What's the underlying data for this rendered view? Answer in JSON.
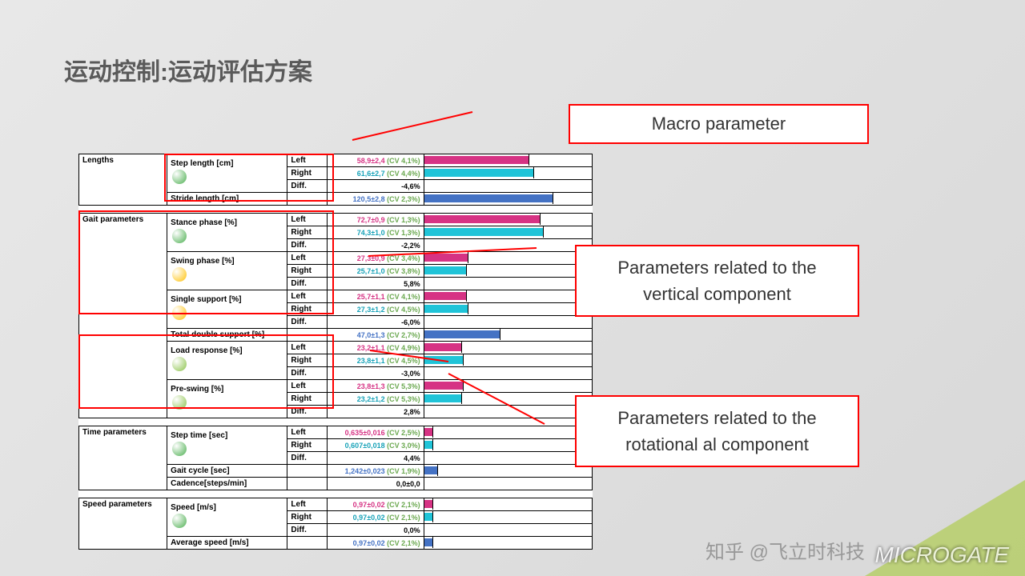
{
  "title": "运动控制:运动评估方案",
  "annotations": {
    "macro": "Macro parameter",
    "vertical": "Parameters related to the vertical component",
    "rotational": "Parameters related to the rotational al component"
  },
  "colors": {
    "pink": "#d63384",
    "cyan": "#20c4d8",
    "blue": "#4472c4",
    "green_cv": "#6aa84f",
    "red": "#ff0000",
    "ball_green": "#4caf50",
    "ball_yellow": "#ffc107",
    "ball_mag": "#8bc34a"
  },
  "sections": [
    {
      "category": "Lengths",
      "rows": [
        {
          "param": "Step length [cm]",
          "ball": "#4caf50",
          "sides": [
            {
              "side": "Left",
              "val": "58,9±2,4",
              "cv": "(CV 4,1%)",
              "color": "pink",
              "bar": 65,
              "barcolor": "#d63384"
            },
            {
              "side": "Right",
              "val": "61,6±2,7",
              "cv": "(CV 4,4%)",
              "color": "cyan",
              "bar": 68,
              "barcolor": "#20c4d8"
            },
            {
              "side": "Diff.",
              "val": "-4,6%",
              "cv": "",
              "color": "black",
              "bar": 0
            }
          ]
        },
        {
          "param": "Stride length [cm]",
          "sides": [
            {
              "side": "",
              "val": "120,5±2,8",
              "cv": "(CV 2,3%)",
              "color": "blue",
              "bar": 80,
              "barcolor": "#4472c4"
            }
          ]
        }
      ]
    },
    {
      "category": "Gait parameters",
      "rows": [
        {
          "param": "Stance phase [%]",
          "ball": "#4caf50",
          "sides": [
            {
              "side": "Left",
              "val": "72,7±0,9",
              "cv": "(CV 1,3%)",
              "color": "pink",
              "bar": 72,
              "barcolor": "#d63384"
            },
            {
              "side": "Right",
              "val": "74,3±1,0",
              "cv": "(CV 1,3%)",
              "color": "cyan",
              "bar": 74,
              "barcolor": "#20c4d8"
            },
            {
              "side": "Diff.",
              "val": "-2,2%",
              "cv": "",
              "color": "black",
              "bar": 0
            }
          ]
        },
        {
          "param": "Swing phase [%]",
          "ball": "#ffc107",
          "sides": [
            {
              "side": "Left",
              "val": "27,3±0,9",
              "cv": "(CV 3,4%)",
              "color": "pink",
              "bar": 27,
              "barcolor": "#d63384"
            },
            {
              "side": "Right",
              "val": "25,7±1,0",
              "cv": "(CV 3,8%)",
              "color": "cyan",
              "bar": 26,
              "barcolor": "#20c4d8"
            },
            {
              "side": "Diff.",
              "val": "5,8%",
              "cv": "",
              "color": "black",
              "bar": 0
            }
          ]
        },
        {
          "param": "Single support [%]",
          "ball": "#ffc107",
          "sides": [
            {
              "side": "Left",
              "val": "25,7±1,1",
              "cv": "(CV 4,1%)",
              "color": "pink",
              "bar": 26,
              "barcolor": "#d63384"
            },
            {
              "side": "Right",
              "val": "27,3±1,2",
              "cv": "(CV 4,5%)",
              "color": "cyan",
              "bar": 27,
              "barcolor": "#20c4d8"
            },
            {
              "side": "Diff.",
              "val": "-6,0%",
              "cv": "",
              "color": "black",
              "bar": 0
            }
          ]
        },
        {
          "param": "Total double support [%]",
          "sides": [
            {
              "side": "",
              "val": "47,0±1,3",
              "cv": "(CV 2,7%)",
              "color": "blue",
              "bar": 47,
              "barcolor": "#4472c4"
            }
          ]
        },
        {
          "param": "Load response [%]",
          "ball": "#8bc34a",
          "sides": [
            {
              "side": "Left",
              "val": "23,2±1,1",
              "cv": "(CV 4,9%)",
              "color": "pink",
              "bar": 23,
              "barcolor": "#d63384"
            },
            {
              "side": "Right",
              "val": "23,8±1,1",
              "cv": "(CV 4,5%)",
              "color": "cyan",
              "bar": 24,
              "barcolor": "#20c4d8"
            },
            {
              "side": "Diff.",
              "val": "-3,0%",
              "cv": "",
              "color": "black",
              "bar": 0
            }
          ]
        },
        {
          "param": "Pre-swing [%]",
          "ball": "#8bc34a",
          "sides": [
            {
              "side": "Left",
              "val": "23,8±1,3",
              "cv": "(CV 5,3%)",
              "color": "pink",
              "bar": 24,
              "barcolor": "#d63384"
            },
            {
              "side": "Right",
              "val": "23,2±1,2",
              "cv": "(CV 5,3%)",
              "color": "cyan",
              "bar": 23,
              "barcolor": "#20c4d8"
            },
            {
              "side": "Diff.",
              "val": "2,8%",
              "cv": "",
              "color": "black",
              "bar": 0
            }
          ]
        }
      ]
    },
    {
      "category": "Time parameters",
      "rows": [
        {
          "param": "Step time [sec]",
          "ball": "#4caf50",
          "sides": [
            {
              "side": "Left",
              "val": "0,635±0,016",
              "cv": "(CV 2,5%)",
              "color": "pink",
              "bar": 5,
              "barcolor": "#d63384"
            },
            {
              "side": "Right",
              "val": "0,607±0,018",
              "cv": "(CV 3,0%)",
              "color": "cyan",
              "bar": 5,
              "barcolor": "#20c4d8"
            },
            {
              "side": "Diff.",
              "val": "4,4%",
              "cv": "",
              "color": "black",
              "bar": 0
            }
          ]
        },
        {
          "param": "Gait cycle [sec]",
          "sides": [
            {
              "side": "",
              "val": "1,242±0,023",
              "cv": "(CV 1,9%)",
              "color": "blue",
              "bar": 8,
              "barcolor": "#4472c4"
            }
          ]
        },
        {
          "param": "Cadence[steps/min]",
          "sides": [
            {
              "side": "",
              "val": "0,0±0,0",
              "cv": "",
              "color": "black",
              "bar": 0
            }
          ]
        }
      ]
    },
    {
      "category": "Speed parameters",
      "rows": [
        {
          "param": "Speed [m/s]",
          "ball": "#4caf50",
          "sides": [
            {
              "side": "Left",
              "val": "0,97±0,02",
              "cv": "(CV 2,1%)",
              "color": "pink",
              "bar": 5,
              "barcolor": "#d63384"
            },
            {
              "side": "Right",
              "val": "0,97±0,02",
              "cv": "(CV 2,1%)",
              "color": "cyan",
              "bar": 5,
              "barcolor": "#20c4d8"
            },
            {
              "side": "Diff.",
              "val": "0,0%",
              "cv": "",
              "color": "black",
              "bar": 0
            }
          ]
        },
        {
          "param": "Average speed [m/s]",
          "sides": [
            {
              "side": "",
              "val": "0,97±0,02",
              "cv": "(CV 2,1%)",
              "color": "blue",
              "bar": 5,
              "barcolor": "#4472c4"
            }
          ]
        }
      ]
    }
  ],
  "watermark": "知乎 @飞立时科技"
}
